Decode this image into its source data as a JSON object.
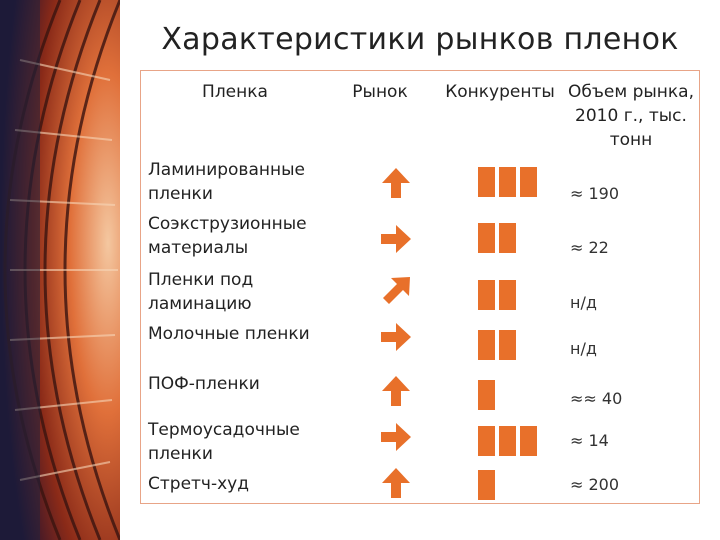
{
  "title": "Характеристики рынков пленок",
  "headers": {
    "film": "Пленка",
    "market": "Рынок",
    "competitors": "Конкуренты",
    "volume": "Объем рынка, 2010 г., тыс. тонн"
  },
  "rows": [
    {
      "name": "Ламинированные пленки",
      "market_trend": "up",
      "competitors": 3,
      "volume": "≈ 190"
    },
    {
      "name": "Соэкструзионные материалы",
      "market_trend": "right",
      "competitors": 2,
      "volume": "≈ 22"
    },
    {
      "name": "Пленки под ламинацию",
      "market_trend": "up-right",
      "competitors": 2,
      "volume": "н/д"
    },
    {
      "name": "Молочные пленки",
      "market_trend": "right",
      "competitors": 2,
      "volume": "н/д"
    },
    {
      "name": "ПОФ-пленки",
      "market_trend": "up",
      "competitors": 1,
      "volume": "≈≈ 40"
    },
    {
      "name": "Термоусадочные пленки",
      "market_trend": "right",
      "competitors": 3,
      "volume": "≈ 14"
    },
    {
      "name": "Стретч-худ",
      "market_trend": "up",
      "competitors": 1,
      "volume": "≈ 200"
    }
  ],
  "colors": {
    "accent": "#e8702a",
    "frame": "#e8a487"
  }
}
